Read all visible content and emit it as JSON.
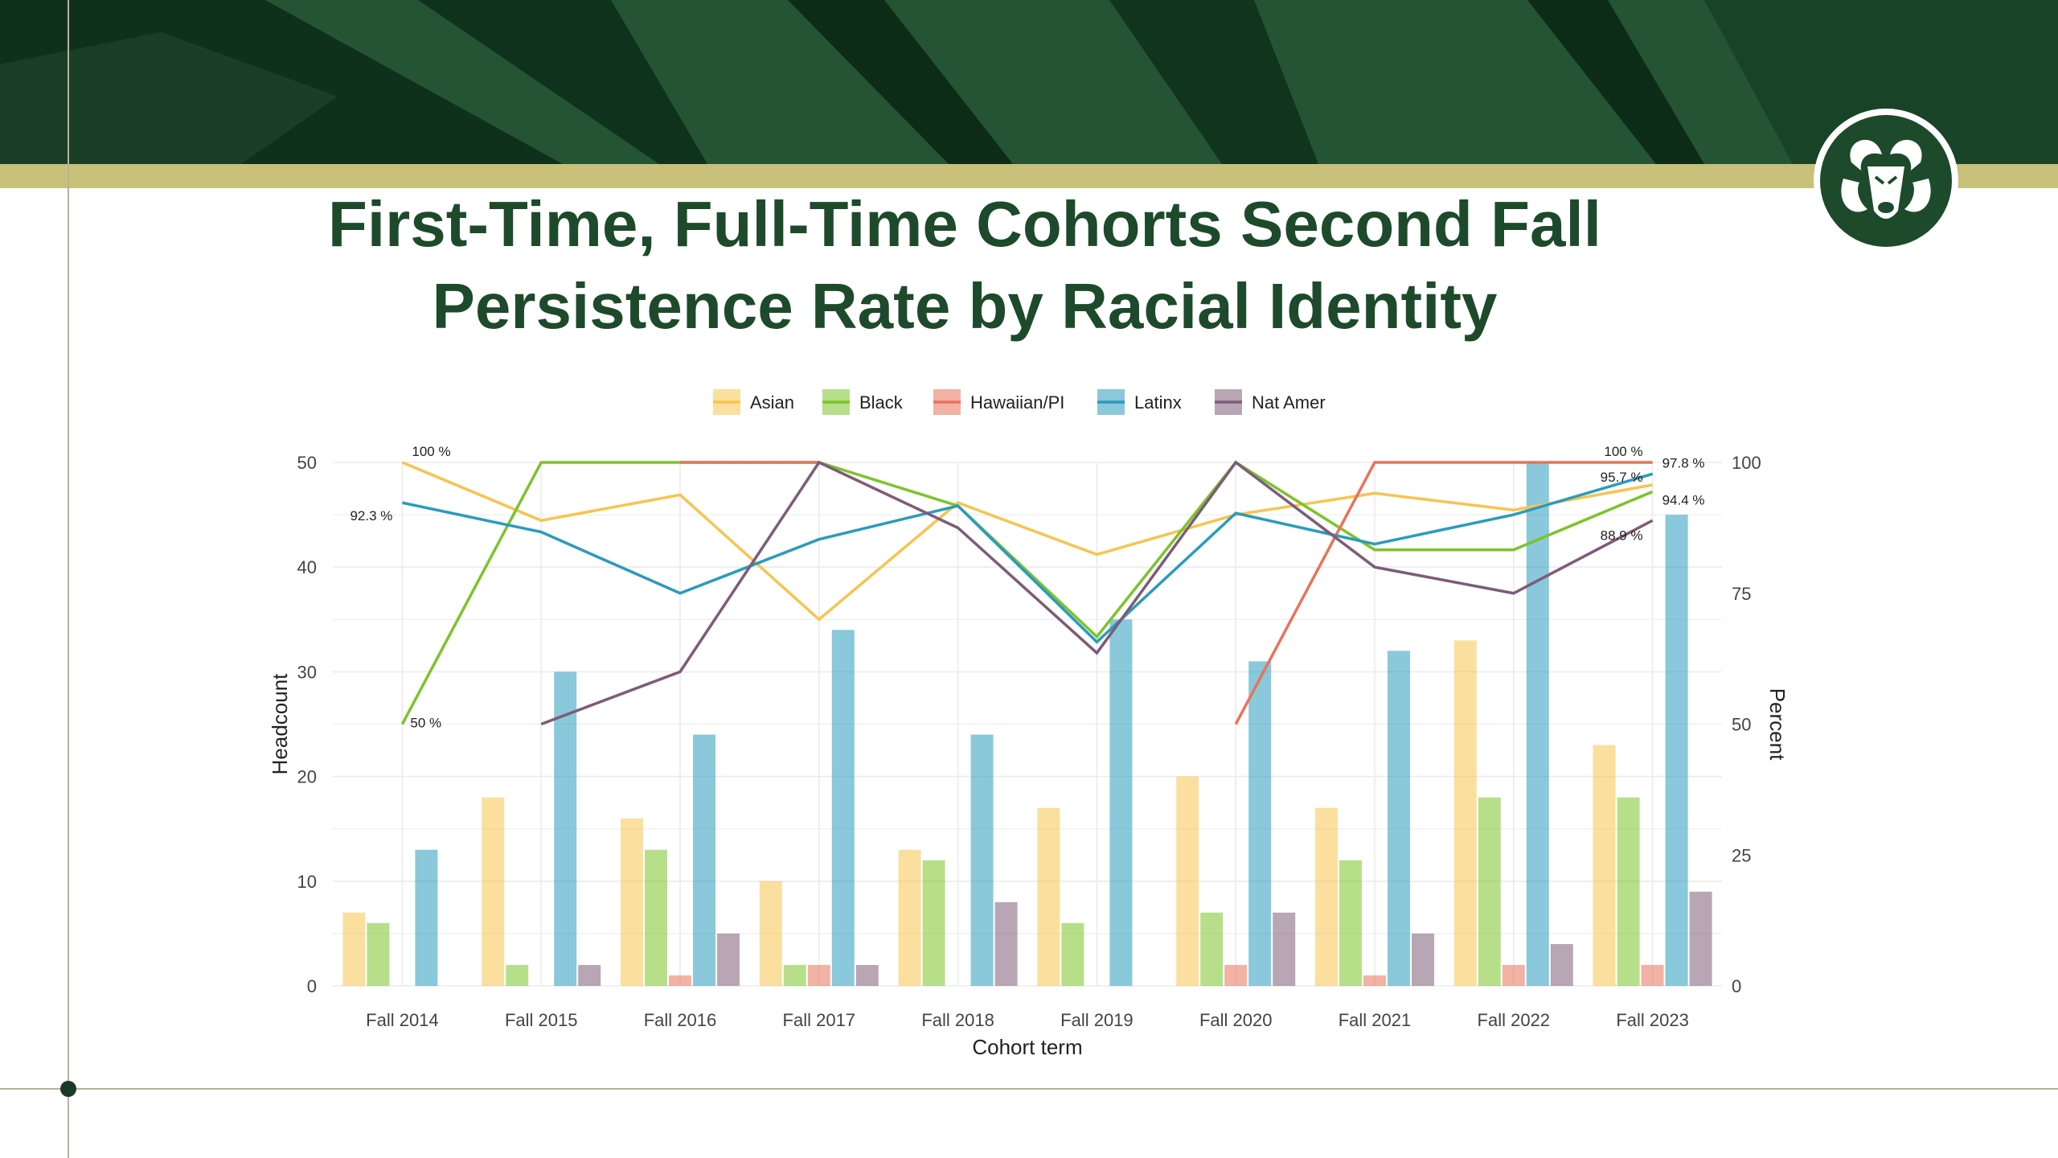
{
  "slide": {
    "title_line1": "First-Time, Full-Time Cohorts Second Fall",
    "title_line2": "Persistence Rate by Racial Identity",
    "colors": {
      "banner": "#1f4a2b",
      "banner_dark": "#0c2c17",
      "gold": "#c9c17a",
      "title": "#1d4a2b"
    },
    "logo_icon": "ram-head-icon"
  },
  "chart_data": {
    "type": "bar",
    "xlabel": "Cohort term",
    "ylabel": "Headcount",
    "y2label": "Percent",
    "ylim": [
      0,
      50
    ],
    "y2lim": [
      0,
      100
    ],
    "yticks": [
      0,
      10,
      20,
      30,
      40,
      50
    ],
    "y2ticks": [
      0,
      25,
      50,
      75,
      100
    ],
    "grid": true,
    "legend_position": "top",
    "categories": [
      "Fall 2014",
      "Fall 2015",
      "Fall 2016",
      "Fall 2017",
      "Fall 2018",
      "Fall 2019",
      "Fall 2020",
      "Fall 2021",
      "Fall 2022",
      "Fall 2023"
    ],
    "series": [
      {
        "name": "Asian",
        "color": "#f7c44f",
        "headcount": [
          7,
          18,
          16,
          10,
          13,
          17,
          20,
          17,
          33,
          23
        ],
        "percent": [
          100,
          88.9,
          93.8,
          70,
          92.3,
          82.4,
          90,
          94.1,
          90.9,
          95.7
        ]
      },
      {
        "name": "Black",
        "color": "#7bc42a",
        "headcount": [
          6,
          2,
          13,
          2,
          12,
          6,
          7,
          12,
          18,
          18
        ],
        "percent": [
          50,
          100,
          100,
          100,
          91.7,
          66.7,
          100,
          83.3,
          83.3,
          94.4
        ]
      },
      {
        "name": "Hawaiian/PI",
        "color": "#e8735a",
        "headcount": [
          0,
          0,
          1,
          2,
          0,
          0,
          2,
          1,
          2,
          2
        ],
        "percent": [
          null,
          null,
          100,
          100,
          null,
          null,
          50,
          100,
          100,
          100
        ]
      },
      {
        "name": "Latinx",
        "color": "#2a9bbd",
        "headcount": [
          13,
          30,
          24,
          34,
          24,
          35,
          31,
          32,
          50,
          45
        ],
        "percent": [
          92.3,
          86.7,
          75,
          85.3,
          91.7,
          65.7,
          90.3,
          84.4,
          90,
          97.8
        ]
      },
      {
        "name": "Nat Amer",
        "color": "#7d5c78",
        "headcount": [
          0,
          2,
          5,
          2,
          8,
          0,
          7,
          5,
          4,
          9
        ],
        "percent": [
          null,
          50,
          60,
          100,
          87.5,
          63.6,
          100,
          80,
          75,
          88.9
        ]
      }
    ],
    "annotations": [
      {
        "category": "Fall 2014",
        "series": "Asian",
        "text": "100 %"
      },
      {
        "category": "Fall 2014",
        "series": "Latinx",
        "text": "92.3 %"
      },
      {
        "category": "Fall 2014",
        "series": "Black",
        "text": "50 %"
      },
      {
        "category": "Fall 2023",
        "series": "Hawaiian/PI",
        "text": "100 %"
      },
      {
        "category": "Fall 2023",
        "series": "Latinx",
        "text": "97.8 %"
      },
      {
        "category": "Fall 2023",
        "series": "Asian",
        "text": "95.7 %"
      },
      {
        "category": "Fall 2023",
        "series": "Black",
        "text": "94.4 %"
      },
      {
        "category": "Fall 2023",
        "series": "Nat Amer",
        "text": "88.9 %"
      }
    ]
  }
}
